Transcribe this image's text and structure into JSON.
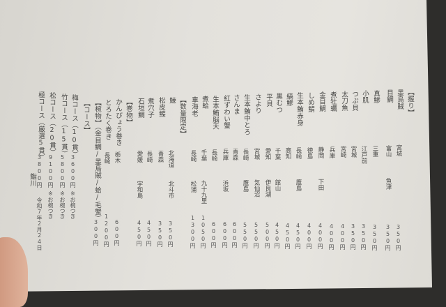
{
  "menu": {
    "columns": [
      {
        "type": "heading",
        "name": "【握り】"
      },
      {
        "name": "墨烏賊",
        "origin": "宮城",
        "price": "350円"
      },
      {
        "name": "目鯛",
        "origin": "富山",
        "sub": "魚津",
        "price": "350円"
      },
      {
        "name": "真鯵",
        "origin": "三重",
        "price": "350円"
      },
      {
        "name": "小肌",
        "origin": "江戸前",
        "price": "350円"
      },
      {
        "name": "つぶ貝",
        "origin": "宮城",
        "price": "350円"
      },
      {
        "name": "太刀魚",
        "origin": "宮崎",
        "price": "400円"
      },
      {
        "name": "煮牡蠣",
        "origin": "兵庫",
        "price": "400円"
      },
      {
        "name": "金目鯛",
        "origin": "静岡",
        "sub": "下田",
        "price": "400円"
      },
      {
        "name": "しめ鯖",
        "origin": "徳島",
        "price": "400円"
      },
      {
        "name": "生本鮪赤身",
        "origin": "長崎",
        "sub": "鷹島",
        "price": "450円"
      },
      {
        "name": "縞鯵",
        "origin": "高知",
        "price": "450円"
      },
      {
        "name": "黒むつ",
        "origin": "千葉",
        "sub": "館山",
        "price": "450円"
      },
      {
        "name": "平貝",
        "origin": "愛知",
        "sub": "伊良湖",
        "price": "500円"
      },
      {
        "name": "さより",
        "origin": "宮城",
        "sub": "気仙沼",
        "price": "550円"
      },
      {
        "name": "生本鮪中とろ",
        "origin": "長崎",
        "sub": "鷹島",
        "price": "550円"
      },
      {
        "name": "さんま",
        "origin": "青森",
        "price": "600円"
      },
      {
        "name": "紅ずわい蟹",
        "origin": "兵庫",
        "sub": "浜坂",
        "price": "600円"
      },
      {
        "name": "生本鮪脳天",
        "origin": "長崎",
        "price": "600円"
      },
      {
        "name": "煮蛤",
        "origin": "千葉",
        "sub": "九十九里",
        "price": "1050円"
      },
      {
        "name": "車海老",
        "origin": "長崎",
        "sub": "松浦",
        "price": "1300円"
      },
      {
        "type": "heading",
        "name": "【数量限定】"
      },
      {
        "name": "鰊",
        "origin": "北海道",
        "sub": "北斗市",
        "price": "350円"
      },
      {
        "name": "松皮鰈",
        "origin": "青森",
        "price": "350円"
      },
      {
        "name": "煮穴子",
        "origin": "長崎",
        "price": "450円"
      },
      {
        "name": "石垣鯛",
        "origin": "愛媛",
        "sub": "宇和島",
        "price": "450円"
      },
      {
        "type": "heading",
        "name": "【巻物】"
      },
      {
        "name": "かんぴょう巻き",
        "origin": "栃木",
        "price": "600円"
      },
      {
        "name": "とろたく巻き",
        "origin": "長崎",
        "price": "1200円"
      },
      {
        "name": "【椀物】（金目鯛/墨烏賊/蛤/毛蟹）",
        "price": "300円"
      },
      {
        "type": "heading",
        "name": "【コース】"
      },
      {
        "type": "course",
        "name": "梅コース（10貫）",
        "price": "3600円",
        "note": "※お椀つき"
      },
      {
        "type": "course",
        "name": "竹コース（15貫）",
        "price": "5800円",
        "note": "※お椀つき"
      },
      {
        "type": "course",
        "name": "松コース（20貫）",
        "price": "9100円",
        "note": "※お椀つき"
      },
      {
        "type": "course",
        "name": "極コース（厳選5貫）",
        "price": "3800円",
        "note": "令和7年2月24日"
      },
      {
        "type": "signature",
        "name": "鮨川"
      }
    ]
  }
}
